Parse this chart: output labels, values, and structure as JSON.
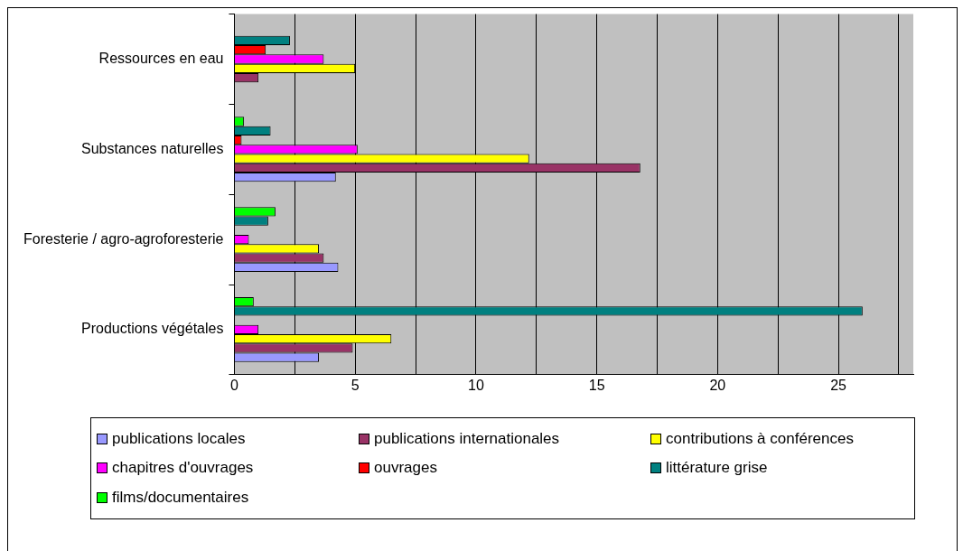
{
  "chart_data": {
    "type": "bar",
    "orientation": "horizontal",
    "categories": [
      "Ressources en eau",
      "Substances naturelles",
      "Foresterie / agro-agroforesterie",
      "Productions végétales"
    ],
    "series": [
      {
        "name": "publications locales",
        "color": "#9999ff",
        "values": [
          0,
          4.2,
          4.3,
          3.5
        ]
      },
      {
        "name": "publications internationales",
        "color": "#993366",
        "values": [
          1.0,
          16.8,
          3.7,
          4.9
        ]
      },
      {
        "name": "contributions à conférences",
        "color": "#ffff00",
        "values": [
          5.0,
          12.2,
          3.5,
          6.5
        ]
      },
      {
        "name": "chapitres d'ouvrages",
        "color": "#ff00ff",
        "values": [
          3.7,
          5.1,
          0.6,
          1.0
        ]
      },
      {
        "name": "ouvrages",
        "color": "#ff0000",
        "values": [
          1.3,
          0.3,
          0,
          0
        ]
      },
      {
        "name": "littérature grise",
        "color": "#008080",
        "values": [
          2.3,
          1.5,
          1.4,
          26.0
        ]
      },
      {
        "name": "films/documentaires",
        "color": "#00ff00",
        "values": [
          0,
          0.4,
          1.7,
          0.8
        ]
      }
    ],
    "xlim": [
      0,
      28.1
    ],
    "xticks": [
      0,
      {
        "value": 2.5,
        "label": null
      },
      5,
      {
        "value": 7.5,
        "label": null
      },
      10,
      {
        "value": 12.5,
        "label": null
      },
      15,
      {
        "value": 17.5,
        "label": null
      },
      20,
      {
        "value": 22.5,
        "label": null
      },
      25,
      {
        "value": 27.5,
        "label": null
      }
    ],
    "grid": "x",
    "legend": "bottom"
  }
}
